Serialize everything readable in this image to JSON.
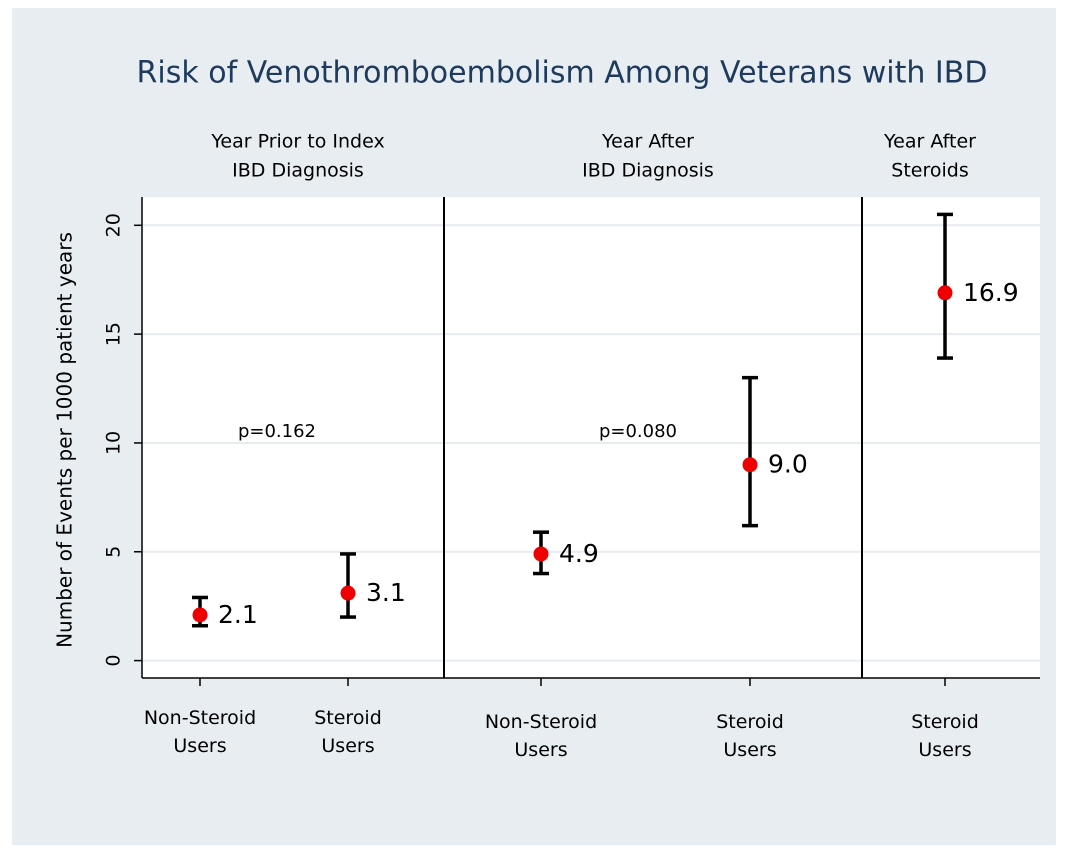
{
  "chart_data": {
    "type": "errorbar",
    "title": "Risk of Venothromboembolism Among Veterans with IBD",
    "y_label": "Number of Events per 1000 patient years",
    "ylim": [
      -0.8,
      21.3
    ],
    "yticks": [
      0,
      5,
      10,
      15,
      20
    ],
    "grid": true,
    "color": "#ee0000",
    "panels": [
      {
        "title": [
          "Year Prior to Index",
          "IBD Diagnosis"
        ],
        "categories": [
          "Non-Steroid Users",
          "Steroid Users"
        ],
        "values": [
          2.1,
          3.1
        ],
        "value_labels": [
          "2.1",
          "3.1"
        ],
        "lower": [
          1.6,
          2.0
        ],
        "upper": [
          2.9,
          4.9
        ],
        "annotation": "p=0.162"
      },
      {
        "title": [
          "Year After",
          "IBD Diagnosis"
        ],
        "categories": [
          "Non-Steroid Users",
          "Steroid Users"
        ],
        "values": [
          4.9,
          9.0
        ],
        "value_labels": [
          "4.9",
          "9.0"
        ],
        "lower": [
          4.0,
          6.2
        ],
        "upper": [
          5.9,
          13.0
        ],
        "annotation": "p=0.080"
      },
      {
        "title": [
          "Year After",
          "Steroids"
        ],
        "categories": [
          "Steroid Users"
        ],
        "values": [
          16.9
        ],
        "value_labels": [
          "16.9"
        ],
        "lower": [
          13.9
        ],
        "upper": [
          20.5
        ]
      }
    ]
  }
}
